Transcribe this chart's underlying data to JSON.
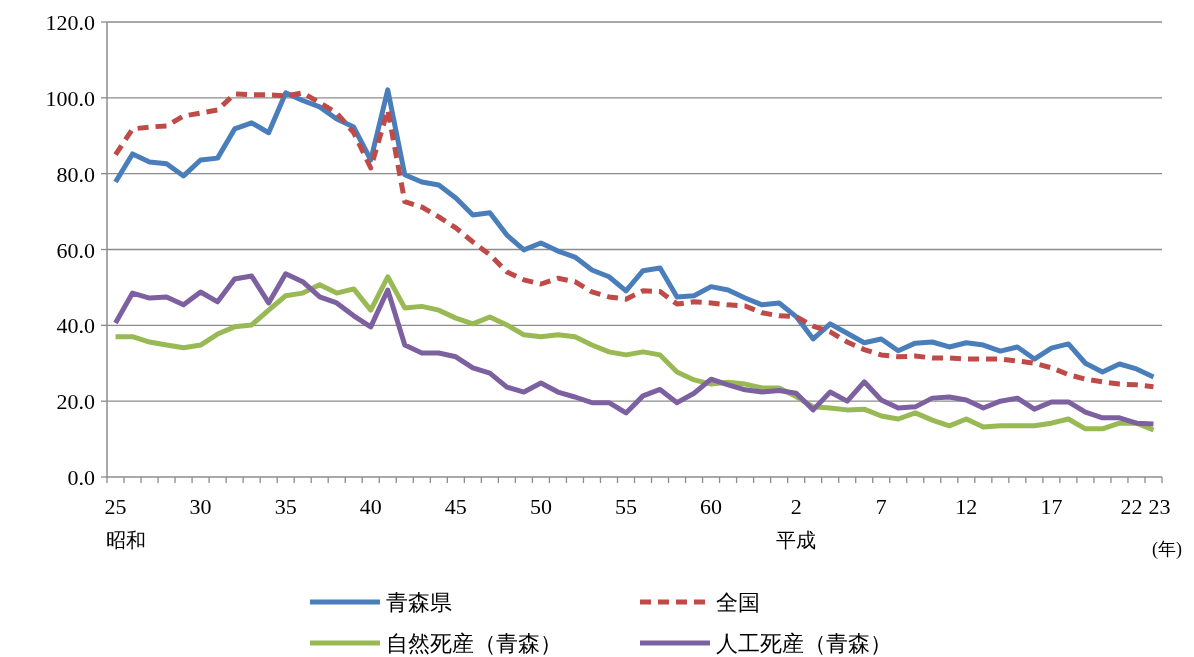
{
  "chart_data": {
    "type": "line",
    "categories": [
      "25",
      null,
      null,
      null,
      null,
      "30",
      null,
      null,
      null,
      null,
      "35",
      null,
      null,
      null,
      null,
      "40",
      null,
      null,
      null,
      null,
      "45",
      null,
      null,
      null,
      null,
      "50",
      null,
      null,
      null,
      null,
      "55",
      null,
      null,
      null,
      null,
      "60",
      null,
      null,
      null,
      null,
      "2",
      null,
      null,
      null,
      null,
      "7",
      null,
      null,
      null,
      null,
      "12",
      null,
      null,
      null,
      null,
      "17",
      null,
      null,
      null,
      null,
      "22",
      "23"
    ],
    "ylim": [
      0,
      120
    ],
    "yticks": [
      {
        "value": 0,
        "label": "0.0"
      },
      {
        "value": 20,
        "label": "20.0"
      },
      {
        "value": 40,
        "label": "40.0"
      },
      {
        "value": 60,
        "label": "60.0"
      },
      {
        "value": 80,
        "label": "80.0"
      },
      {
        "value": 100,
        "label": "100.0"
      },
      {
        "value": 120,
        "label": "120.0"
      }
    ],
    "grid": "y",
    "legend": "bottom",
    "annotations": [
      "昭和",
      "平成",
      "(年)"
    ],
    "series": [
      {
        "name": "青森県",
        "color": "#4a7ebb",
        "line_style": "solid",
        "values": [
          77.8,
          85.2,
          83.1,
          82.6,
          79.4,
          83.6,
          84.1,
          91.8,
          93.4,
          90.8,
          101.3,
          99.3,
          97.6,
          94.4,
          92.3,
          83.6,
          102.1,
          79.7,
          77.8,
          77,
          73.6,
          69.1,
          69.7,
          63.8,
          59.9,
          61.7,
          59.6,
          58,
          54.6,
          52.8,
          49.1,
          54.4,
          55.1,
          47.5,
          47.8,
          50.2,
          49.3,
          47.2,
          45.4,
          45.9,
          42.3,
          36.4,
          40.4,
          37.9,
          35.4,
          36.4,
          33.3,
          35.3,
          35.6,
          34.3,
          35.4,
          34.8,
          33.2,
          34.3,
          31.1,
          34,
          35.1,
          30,
          27.7,
          29.8,
          28.5,
          26.4
        ]
      },
      {
        "name": "全国",
        "color": "#be4b48",
        "line_style": "dashed",
        "values": [
          85,
          91.8,
          92.3,
          92.6,
          95.2,
          96,
          96.8,
          101,
          100.8,
          100.8,
          100.5,
          101.3,
          98.7,
          96,
          90.8,
          81.5,
          96.8,
          72.6,
          71.2,
          68.6,
          65.7,
          62,
          58.6,
          54.1,
          52,
          50.9,
          52.4,
          51.5,
          48.8,
          47.5,
          46.9,
          49.1,
          48.9,
          45.6,
          46.2,
          45.9,
          45.4,
          45.1,
          43.3,
          42.5,
          42.3,
          39.8,
          38.3,
          35.6,
          33.6,
          32.2,
          31.7,
          31.9,
          31.4,
          31.4,
          31.1,
          31.1,
          31.1,
          30.6,
          30,
          28.8,
          27,
          25.8,
          25.1,
          24.5,
          24.3,
          23.8
        ]
      },
      {
        "name": "自然死産（青森）",
        "color": "#98b954",
        "line_style": "solid",
        "values": [
          37,
          37,
          35.6,
          34.8,
          34.1,
          34.8,
          37.7,
          39.6,
          40.1,
          44,
          47.8,
          48.5,
          50.7,
          48.5,
          49.6,
          44,
          52.8,
          44.6,
          45,
          44,
          41.9,
          40.4,
          42.2,
          40.1,
          37.5,
          37,
          37.5,
          37,
          34.8,
          33,
          32.2,
          33,
          32.2,
          27.7,
          25.6,
          24.5,
          25,
          24.5,
          23.5,
          23.5,
          21.2,
          18.5,
          18.2,
          17.7,
          17.9,
          16.1,
          15.3,
          16.9,
          15,
          13.5,
          15.3,
          13.2,
          13.5,
          13.5,
          13.5,
          14.2,
          15.3,
          12.7,
          12.7,
          14.2,
          14.2,
          12.4
        ]
      },
      {
        "name": "人工死産（青森）",
        "color": "#7d60a0",
        "line_style": "solid",
        "values": [
          40.6,
          48.5,
          47.2,
          47.5,
          45.4,
          48.8,
          46.2,
          52.2,
          53,
          45.9,
          53.6,
          51.5,
          47.5,
          45.9,
          42.5,
          39.6,
          49.3,
          34.8,
          32.7,
          32.7,
          31.7,
          28.8,
          27.4,
          23.7,
          22.4,
          24.8,
          22.4,
          21.1,
          19.6,
          19.6,
          16.9,
          21.4,
          23.1,
          19.6,
          22.1,
          25.8,
          24.3,
          23,
          22.4,
          22.8,
          22.1,
          17.7,
          22.4,
          20,
          25.1,
          20.3,
          18.2,
          18.5,
          20.8,
          21.1,
          20.3,
          18.2,
          20,
          20.8,
          17.9,
          19.8,
          19.8,
          17.1,
          15.6,
          15.6,
          14.2,
          14
        ]
      }
    ]
  }
}
